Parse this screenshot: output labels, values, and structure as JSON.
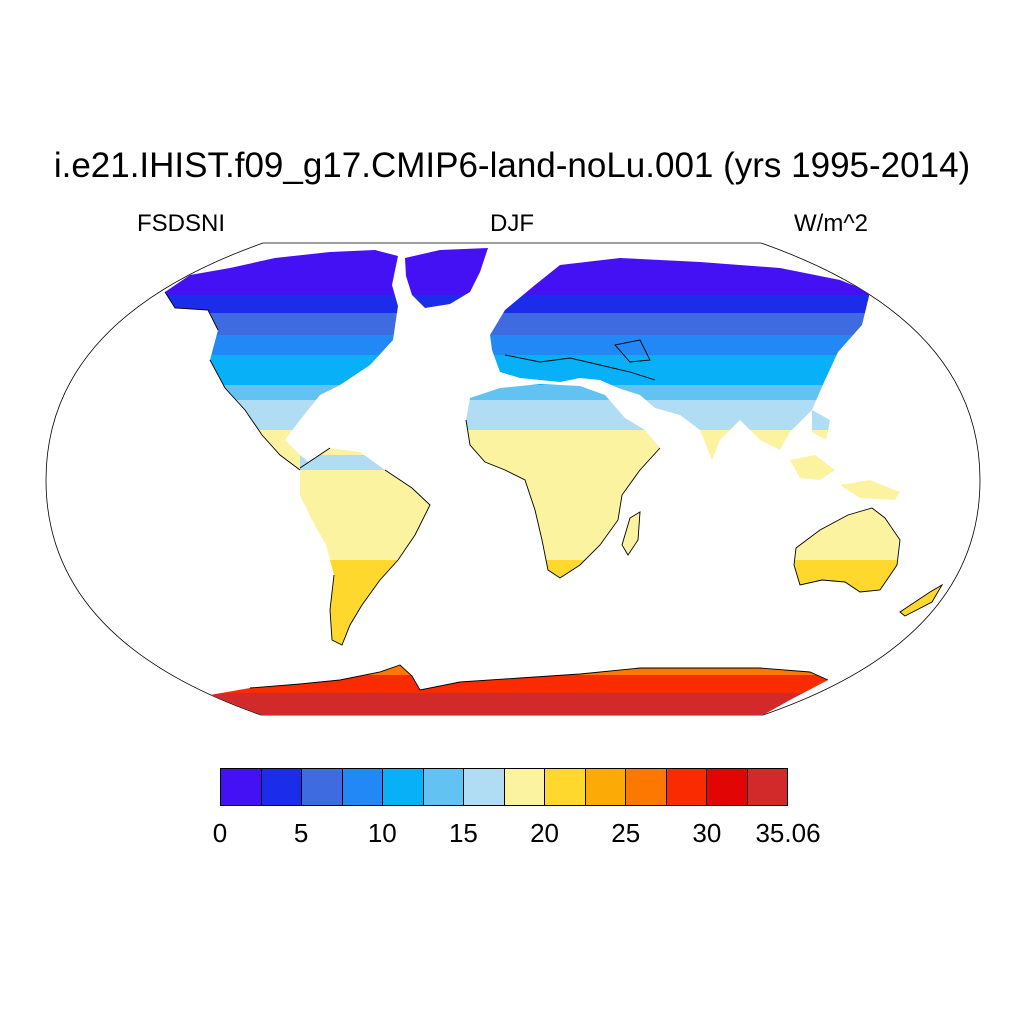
{
  "title": "i.e21.IHIST.f09_g17.CMIP6-land-noLu.001 (yrs 1995-2014)",
  "variable": "FSDSNI",
  "season": "DJF",
  "units": "W/m^2",
  "projection": "Robinson",
  "colorbar": {
    "labels": [
      "0",
      "5",
      "10",
      "15",
      "20",
      "25",
      "30",
      "35.06"
    ],
    "colors": [
      "#4411f5",
      "#1b2cea",
      "#3e6be0",
      "#2288f5",
      "#08b0f7",
      "#62c3f2",
      "#b0dcf4",
      "#fcf3a0",
      "#fed82c",
      "#fcab06",
      "#fd7800",
      "#fb2b00",
      "#e10505",
      "#d22a2a"
    ]
  },
  "map_data": {
    "note_colors": "land shading by latitude bands; oceans white"
  }
}
